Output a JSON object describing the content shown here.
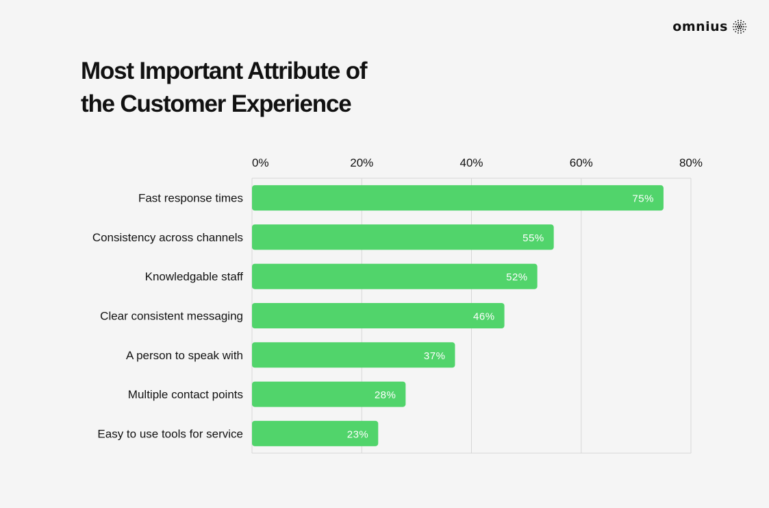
{
  "brand": {
    "name": "omnius"
  },
  "title_lines": [
    "Most Important Attribute of",
    "the Customer Experience"
  ],
  "colors": {
    "background": "#f5f5f5",
    "bar": "#51d46b",
    "bar_label": "#ffffff",
    "grid": "#d6d6d6",
    "text": "#111111"
  },
  "chart_data": {
    "type": "bar",
    "orientation": "horizontal",
    "title": "Most Important Attribute of the Customer Experience",
    "categories": [
      "Fast response times",
      "Consistency across channels",
      "Knowledgable staff",
      "Clear consistent messaging",
      "A person to speak with",
      "Multiple contact points",
      "Easy to use tools for service"
    ],
    "values": [
      75,
      55,
      52,
      46,
      37,
      28,
      23
    ],
    "value_labels": [
      "75%",
      "55%",
      "52%",
      "46%",
      "37%",
      "28%",
      "23%"
    ],
    "xlim": [
      0,
      80
    ],
    "xticks": [
      0,
      20,
      40,
      60,
      80
    ],
    "xtick_labels": [
      "0%",
      "20%",
      "40%",
      "60%",
      "80%"
    ],
    "axis_position": "top",
    "grid": true,
    "legend": "none"
  }
}
